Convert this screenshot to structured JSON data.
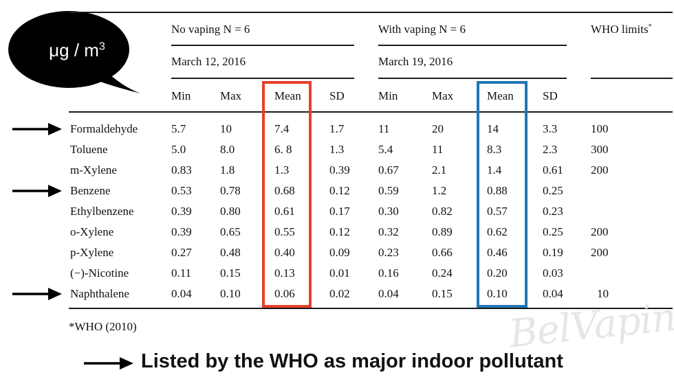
{
  "bubble": {
    "unit_main": "μg / m",
    "unit_sup": "3"
  },
  "header": {
    "group1": "No vaping N = 6",
    "group1_date": "March 12, 2016",
    "group2": "With vaping N = 6",
    "group2_date": "March 19, 2016",
    "who": "WHO limits",
    "who_mark": "*"
  },
  "columns": [
    "Min",
    "Max",
    "Mean",
    "SD",
    "Min",
    "Max",
    "Mean",
    "SD"
  ],
  "rows": [
    {
      "name": "Formaldehyde",
      "values": [
        "5.7",
        "10",
        "7.4",
        "1.7",
        "11",
        "20",
        "14",
        "3.3"
      ],
      "who": "100",
      "arrow": true
    },
    {
      "name": "Toluene",
      "values": [
        "5.0",
        "8.0",
        "6. 8",
        "1.3",
        "5.4",
        "11",
        "8.3",
        "2.3"
      ],
      "who": "300",
      "arrow": false
    },
    {
      "name": "m-Xylene",
      "values": [
        "0.83",
        "1.8",
        "1.3",
        "0.39",
        "0.67",
        "2.1",
        "1.4",
        "0.61"
      ],
      "who": "200",
      "arrow": false
    },
    {
      "name": "Benzene",
      "values": [
        "0.53",
        "0.78",
        "0.68",
        "0.12",
        "0.59",
        "1.2",
        "0.88",
        "0.25"
      ],
      "who": "",
      "arrow": true
    },
    {
      "name": "Ethylbenzene",
      "values": [
        "0.39",
        "0.80",
        "0.61",
        "0.17",
        "0.30",
        "0.82",
        "0.57",
        "0.23"
      ],
      "who": "",
      "arrow": false
    },
    {
      "name": "o-Xylene",
      "values": [
        "0.39",
        "0.65",
        "0.55",
        "0.12",
        "0.32",
        "0.89",
        "0.62",
        "0.25"
      ],
      "who": "200",
      "arrow": false
    },
    {
      "name": "p-Xylene",
      "values": [
        "0.27",
        "0.48",
        "0.40",
        "0.09",
        "0.23",
        "0.66",
        "0.46",
        "0.19"
      ],
      "who": "200",
      "arrow": false
    },
    {
      "name": "(−)-Nicotine",
      "values": [
        "0.11",
        "0.15",
        "0.13",
        "0.01",
        "0.16",
        "0.24",
        "0.20",
        "0.03"
      ],
      "who": "",
      "arrow": false
    },
    {
      "name": "Naphthalene",
      "values": [
        "0.04",
        "0.10",
        "0.06",
        "0.02",
        "0.04",
        "0.15",
        "0.10",
        "0.04"
      ],
      "who": "10",
      "arrow": true
    }
  ],
  "footnote": "*WHO (2010)",
  "caption": "Listed by the WHO as major indoor pollutant",
  "watermark": "BelVaping",
  "colors": {
    "highlight_no_vaping": "#e8402a",
    "highlight_with_vaping": "#1f77b4",
    "bubble": "#000000"
  }
}
